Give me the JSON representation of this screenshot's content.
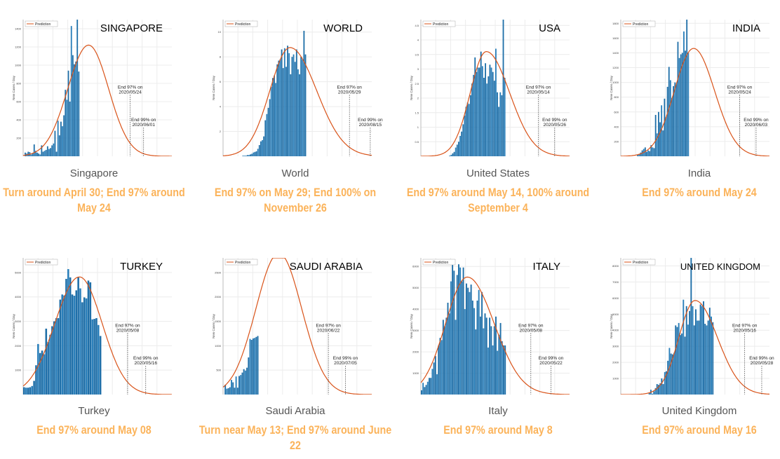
{
  "colors": {
    "bar": "#1f6fa8",
    "curve": "#d95319",
    "caption": "#fbb35a",
    "name": "#555555",
    "grid": "#ececec"
  },
  "legend_label": "Prediction",
  "ylabel": "New Cases / Day",
  "chart_data": [
    {
      "type": "bar+line",
      "title": "SINGAPORE",
      "name": "Singapore",
      "caption": "Turn around April 30; End 97% around May 24",
      "ylim": [
        0,
        1500
      ],
      "yticks": [
        200,
        400,
        600,
        800,
        1000,
        1200,
        1400
      ],
      "xlim": [
        0,
        100
      ],
      "bar_start": 1,
      "values": [
        40,
        30,
        50,
        45,
        20,
        30,
        130,
        60,
        40,
        30,
        20,
        120,
        50,
        60,
        70,
        110,
        80,
        90,
        120,
        140,
        280,
        50,
        390,
        230,
        380,
        330,
        450,
        730,
        620,
        940,
        600,
        1430,
        1110,
        1010,
        1040,
        1500,
        930
      ],
      "prediction": {
        "peak_day": 44,
        "peak": 1220,
        "sigma_left": 14,
        "sigma_right": 13.5
      },
      "markers": [
        {
          "day": 72,
          "line1": "End 97% on",
          "line2": "2020/05/24"
        },
        {
          "day": 81,
          "line1": "End 99% on",
          "line2": "2020/06/01"
        }
      ]
    },
    {
      "type": "bar+line",
      "title": "WORLD",
      "name": "World",
      "caption": "End 97% on May 29; End 100% on November 26",
      "ylim": [
        0,
        11
      ],
      "yticks": [
        2,
        4,
        6,
        8,
        10
      ],
      "xlim": [
        0,
        100
      ],
      "bar_start": 13,
      "values": [
        0.05,
        0.05,
        0.05,
        0.1,
        0.1,
        0.15,
        0.2,
        0.3,
        0.35,
        0.4,
        0.6,
        0.9,
        1.2,
        1.3,
        1.6,
        2.9,
        3.4,
        3.9,
        4.6,
        5.6,
        6.3,
        6.5,
        5.9,
        7.4,
        7.7,
        7.8,
        8.6,
        7.1,
        8.7,
        7.2,
        8.9,
        8.3,
        6.6,
        8.0,
        8.2,
        7.6,
        8.6,
        7.0,
        6.6,
        8.0,
        7.8,
        10.1,
        8.2
      ],
      "prediction": {
        "peak_day": 45,
        "peak": 8.75,
        "sigma_left": 13.5,
        "sigma_right": 17.9
      },
      "markers": [
        {
          "day": 85,
          "line1": "End 97% on",
          "line2": "2020/05/29"
        },
        {
          "day": 99,
          "line1": "End 99% on",
          "line2": "2020/08/15"
        }
      ]
    },
    {
      "type": "bar+line",
      "title": "USA",
      "name": "United States",
      "caption": "End 97% around May 14, 100% around September 4",
      "ylim": [
        0,
        4.7
      ],
      "yticks": [
        0.5,
        1,
        1.5,
        2,
        2.5,
        3,
        3.5,
        4,
        4.5
      ],
      "xlim": [
        0,
        100
      ],
      "bar_start": 19,
      "values": [
        0.02,
        0.05,
        0.1,
        0.15,
        0.3,
        0.4,
        0.5,
        0.7,
        0.85,
        1.1,
        1.4,
        1.7,
        1.85,
        1.8,
        2.1,
        2.5,
        2.8,
        3.4,
        2.9,
        3.05,
        3.05,
        3.6,
        3.1,
        2.7,
        3.2,
        2.5,
        2.75,
        3.15,
        3.05,
        2.9,
        2.6,
        3.7,
        2.2,
        1.7,
        2.2,
        2.1,
        4.7,
        2.7
      ],
      "prediction": {
        "peak_day": 44,
        "peak": 3.6,
        "sigma_left": 10.8,
        "sigma_right": 15.7
      },
      "markers": [
        {
          "day": 79,
          "line1": "End 97% on",
          "line2": "2020/05/14"
        },
        {
          "day": 90,
          "line1": "End 99% on",
          "line2": "2020/05/26"
        }
      ]
    },
    {
      "type": "bar+line",
      "title": "INDIA",
      "name": "India",
      "caption": "End 97% around May 24",
      "ylim": [
        0,
        1850
      ],
      "yticks": [
        200,
        400,
        600,
        800,
        1000,
        1200,
        1400,
        1600,
        1800
      ],
      "xlim": [
        0,
        100
      ],
      "bar_start": 11,
      "values": [
        20,
        30,
        50,
        80,
        100,
        120,
        60,
        80,
        70,
        150,
        120,
        110,
        560,
        310,
        600,
        460,
        690,
        350,
        780,
        530,
        940,
        1210,
        1030,
        790,
        950,
        1000,
        990,
        1550,
        1330,
        1380,
        1400,
        1690,
        1430,
        1850,
        1400
      ],
      "prediction": {
        "peak_day": 49,
        "peak": 1460,
        "sigma_left": 13,
        "sigma_right": 14.1
      },
      "markers": [
        {
          "day": 80,
          "line1": "End 97% on",
          "line2": "2020/05/24"
        },
        {
          "day": 91,
          "line1": "End 99% on",
          "line2": "2020/06/03"
        }
      ]
    },
    {
      "type": "bar+line",
      "title": "TURKEY",
      "name": "Turkey",
      "caption": "End 97% around May 08",
      "ylim": [
        0,
        5600
      ],
      "yticks": [
        1000,
        2000,
        3000,
        4000,
        5000
      ],
      "xlim": [
        0,
        74
      ],
      "bar_start": 0,
      "values": [
        300,
        280,
        280,
        300,
        350,
        560,
        1200,
        2070,
        1700,
        1800,
        1650,
        2700,
        2150,
        2450,
        2800,
        3000,
        3130,
        3130,
        3890,
        4100,
        4060,
        4740,
        5140,
        4800,
        4100,
        4050,
        4270,
        4800,
        4350,
        3780,
        3980,
        3940,
        4670,
        4600,
        3080,
        3100,
        3130,
        2850,
        2400
      ],
      "prediction": {
        "peak_day": 28,
        "peak": 4820,
        "sigma_left": 12.2,
        "sigma_right": 11.3
      },
      "markers": [
        {
          "day": 52,
          "line1": "End 97% on",
          "line2": "2020/05/08"
        },
        {
          "day": 61,
          "line1": "End 99% on",
          "line2": "2020/05/16"
        }
      ]
    },
    {
      "type": "bar+line",
      "title": "SAUDI ARABIA",
      "name": "Saudi Arabia",
      "caption": "Turn near May 13; End 97% around June 22",
      "ylim": [
        0,
        2800
      ],
      "yticks": [
        500,
        1000,
        1500,
        2000,
        2500
      ],
      "xlim": [
        0,
        96
      ],
      "bar_start": 1,
      "values": [
        200,
        120,
        130,
        150,
        300,
        250,
        140,
        370,
        140,
        380,
        400,
        450,
        520,
        490,
        550,
        760,
        1140,
        1120,
        1150,
        1160,
        1180,
        1200
      ],
      "prediction": {
        "peak_day": 36,
        "peak": 2900,
        "sigma_left": 14.8,
        "sigma_right": 14.8
      },
      "markers": [
        {
          "day": 68,
          "line1": "End 97% on",
          "line2": "2020/06/22"
        },
        {
          "day": 79,
          "line1": "End 99% on",
          "line2": "2020/07/05"
        }
      ]
    },
    {
      "type": "bar+line",
      "title": "ITALY",
      "name": "Italy",
      "caption": "End 97% around May 8",
      "ylim": [
        0,
        6400
      ],
      "yticks": [
        1000,
        2000,
        3000,
        4000,
        5000,
        6000
      ],
      "xlim": [
        0,
        96
      ],
      "bar_start": 0,
      "values": [
        200,
        550,
        350,
        450,
        600,
        780,
        780,
        1200,
        1500,
        1800,
        950,
        2300,
        2650,
        2550,
        3500,
        3200,
        3600,
        4300,
        3800,
        5300,
        6200,
        5800,
        3500,
        5600,
        6100,
        5950,
        5300,
        5950,
        4000,
        5200,
        5000,
        4800,
        5150,
        4400,
        4050,
        3050,
        4400,
        4900,
        3650,
        4800,
        3100,
        3800,
        3600,
        2200,
        3600,
        3200,
        2300,
        3200,
        3650,
        2050,
        2800,
        3350,
        2500,
        2300,
        2300
      ],
      "prediction": {
        "peak_day": 30,
        "peak": 5500,
        "sigma_left": 14,
        "sigma_right": 17.3
      },
      "markers": [
        {
          "day": 71,
          "line1": "End 97% on",
          "line2": "2020/05/08"
        },
        {
          "day": 84,
          "line1": "End 99% on",
          "line2": "2020/05/22"
        }
      ]
    },
    {
      "type": "bar+line",
      "title": "UNITED KINGDOM",
      "name": "United Kingdom",
      "caption": "End 97% around May 16",
      "ylim": [
        0,
        8500
      ],
      "yticks": [
        1000,
        2000,
        3000,
        4000,
        5000,
        6000,
        7000,
        8000
      ],
      "xlim": [
        0,
        96
      ],
      "bar_start": 18,
      "values": [
        100,
        300,
        50,
        200,
        400,
        650,
        600,
        700,
        1000,
        650,
        1400,
        1450,
        2100,
        2900,
        2550,
        2500,
        2600,
        4300,
        4200,
        4450,
        3700,
        3800,
        5900,
        3600,
        5500,
        4350,
        5200,
        8500,
        5500,
        4300,
        5300,
        4600,
        4600,
        5600,
        5500,
        5800,
        4400,
        4300,
        4600,
        5400,
        4850,
        4500
      ],
      "prediction": {
        "peak_day": 48,
        "peak": 5850,
        "sigma_left": 10.5,
        "sigma_right": 14.4
      },
      "markers": [
        {
          "day": 80,
          "line1": "End 97% on",
          "line2": "2020/05/16"
        },
        {
          "day": 91,
          "line1": "End 99% on",
          "line2": "2020/05/28"
        }
      ]
    }
  ]
}
